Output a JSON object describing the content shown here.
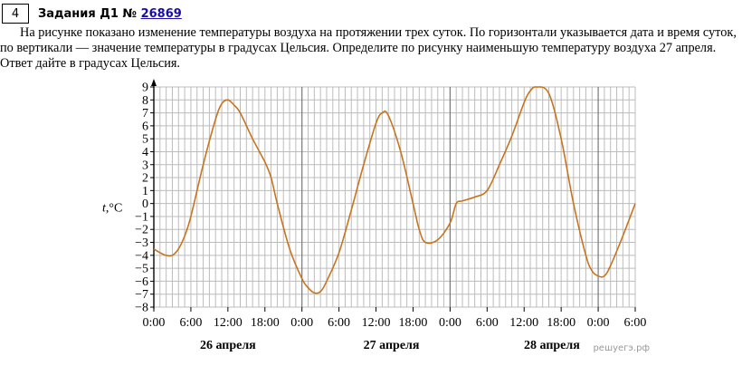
{
  "task": {
    "number": "4",
    "title_prefix": "Задания Д1 №",
    "id": "26869",
    "text": "На рисунке показано изменение температуры воздуха на протяжении трех суток. По горизонтали указывается дата и время суток, по вертикали — значение температуры в градусах Цельсия. Определите по рисунку наименьшую температуру воздуха 27 апреля. Ответ дайте в градусах Цельсия."
  },
  "watermark": "решуегэ.рф",
  "colors": {
    "line": "#c8741e",
    "grid": "#bcbcbc",
    "axis": "#000000"
  },
  "chart_data": {
    "type": "line",
    "title": "",
    "xlabel": "",
    "ylabel": "t,°C",
    "ylim": [
      -8,
      9
    ],
    "xlim": [
      0,
      78
    ],
    "yticks": [
      -8,
      -7,
      -6,
      -5,
      -4,
      -3,
      -2,
      -1,
      0,
      1,
      2,
      3,
      4,
      5,
      6,
      7,
      8,
      9
    ],
    "xticks": [
      {
        "h": 0,
        "label": "0:00"
      },
      {
        "h": 6,
        "label": "6:00"
      },
      {
        "h": 12,
        "label": "12:00"
      },
      {
        "h": 18,
        "label": "18:00"
      },
      {
        "h": 24,
        "label": "0:00"
      },
      {
        "h": 30,
        "label": "6:00"
      },
      {
        "h": 36,
        "label": "12:00"
      },
      {
        "h": 42,
        "label": "18:00"
      },
      {
        "h": 48,
        "label": "0:00"
      },
      {
        "h": 54,
        "label": "6:00"
      },
      {
        "h": 60,
        "label": "12:00"
      },
      {
        "h": 66,
        "label": "18:00"
      },
      {
        "h": 72,
        "label": "0:00"
      },
      {
        "h": 78,
        "label": "6:00"
      }
    ],
    "dates": [
      {
        "label": "26 апреля",
        "h": 12
      },
      {
        "label": "27 апреля",
        "h": 38.5
      },
      {
        "label": "28 апреля",
        "h": 64.5
      }
    ],
    "grid": true,
    "series": [
      {
        "x": [
          0,
          1,
          2,
          3,
          4,
          5,
          6,
          8,
          10,
          11,
          12,
          13,
          14,
          16,
          18,
          19,
          20,
          22,
          24,
          25,
          26,
          27,
          28,
          30,
          32,
          34,
          36,
          37,
          38,
          40,
          42,
          43,
          44,
          46,
          48,
          49,
          50,
          52,
          54,
          56,
          58,
          60,
          61,
          62,
          64,
          66,
          68,
          70,
          71,
          72,
          73,
          74,
          76,
          78
        ],
        "y": [
          -3.5,
          -3.8,
          -4,
          -4,
          -3.5,
          -2.5,
          -1,
          3,
          6.5,
          7.7,
          8,
          7.6,
          7,
          5,
          3.2,
          2,
          0,
          -3.5,
          -5.8,
          -6.5,
          -6.9,
          -6.8,
          -6,
          -3.8,
          -0.5,
          3,
          6.2,
          7,
          6.8,
          4,
          0,
          -2,
          -3,
          -2.8,
          -1.5,
          0,
          0.2,
          0.5,
          1,
          3,
          5.2,
          7.8,
          8.7,
          9,
          8.5,
          5,
          0,
          -4,
          -5.2,
          -5.6,
          -5.6,
          -4.8,
          -2.5,
          0
        ]
      }
    ]
  }
}
